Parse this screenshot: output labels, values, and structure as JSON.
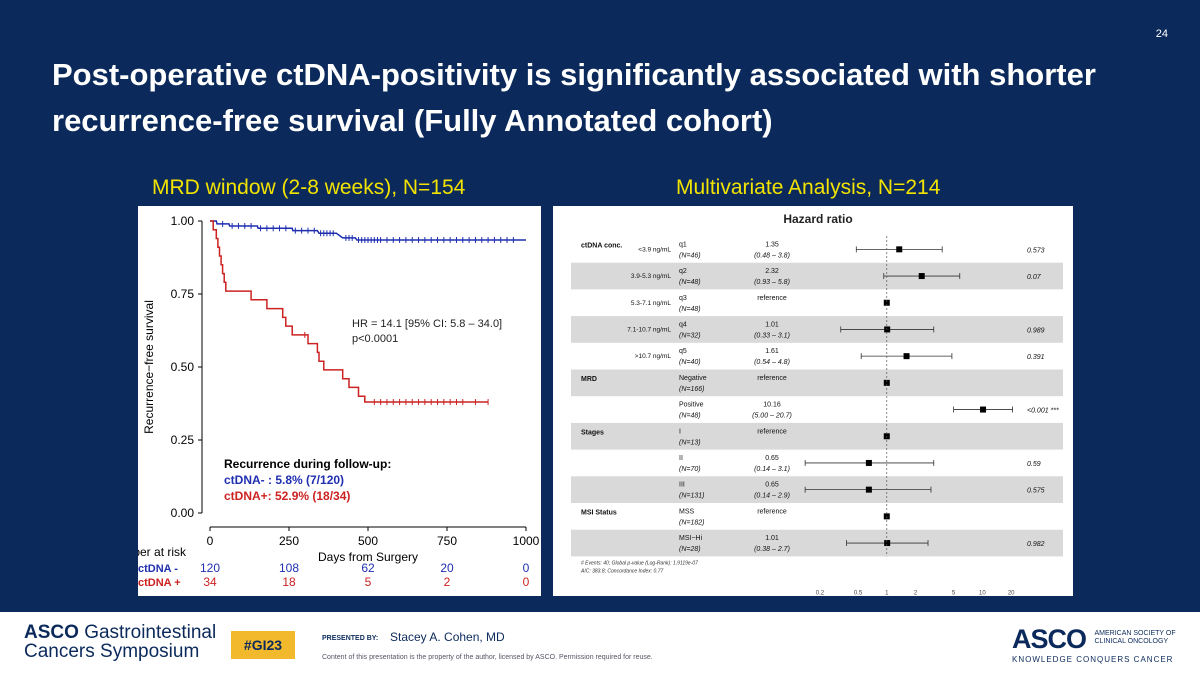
{
  "slide": {
    "page_number": "24",
    "title": "Post-operative ctDNA-positivity is significantly associated with shorter recurrence-free survival (Fully Annotated cohort)",
    "left_heading": "MRD window (2-8 weeks), N=154",
    "right_heading": "Multivariate Analysis, N=214"
  },
  "footer": {
    "logo_left_line1_bold": "ASCO",
    "logo_left_line1": "Gastrointestinal",
    "logo_left_line2": "Cancers Symposium",
    "hashtag": "#GI23",
    "presented_by_label": "PRESENTED BY:",
    "presenter": "Stacey A. Cohen, MD",
    "disclaimer": "Content of this presentation is the property of the author, licensed by ASCO. Permission required for reuse.",
    "logo_right_text": "ASCO",
    "logo_right_society": [
      "AMERICAN SOCIETY OF",
      "CLINICAL ONCOLOGY"
    ],
    "logo_right_tagline": "KNOWLEDGE CONQUERS CANCER"
  },
  "colors": {
    "background": "#0b2a5b",
    "heading": "#f2e300",
    "ctdna_neg": "#1f2fb0",
    "ctdna_pos": "#cc2222"
  },
  "chart_data": [
    {
      "type": "line",
      "ylabel": "Recurrence−free survival",
      "xlabel": "Days from Surgery",
      "x_ticks": [
        "0",
        "250",
        "500",
        "750",
        "1000"
      ],
      "y_ticks": [
        "0.00",
        "0.25",
        "0.50",
        "0.75",
        "1.00"
      ],
      "xlim": [
        0,
        1000
      ],
      "ylim": [
        0,
        1
      ],
      "grid": false,
      "annotation": {
        "hr_line": "HR = 14.1 [95% CI: 5.8 – 34.0]",
        "p_line": "p<0.0001"
      },
      "recurrence_box": {
        "title": "Recurrence during follow-up:",
        "neg": "ctDNA- : 5.8% (7/120)",
        "pos": "ctDNA+: 52.9% (18/34)"
      },
      "series": [
        {
          "name": "ctDNA -",
          "color": "#1f2fb0",
          "points": [
            [
              0,
              1.0
            ],
            [
              20,
              1.0
            ],
            [
              22,
              0.99
            ],
            [
              60,
              0.99
            ],
            [
              62,
              0.983
            ],
            [
              150,
              0.983
            ],
            [
              152,
              0.975
            ],
            [
              260,
              0.975
            ],
            [
              262,
              0.967
            ],
            [
              340,
              0.967
            ],
            [
              345,
              0.958
            ],
            [
              400,
              0.958
            ],
            [
              410,
              0.95
            ],
            [
              420,
              0.942
            ],
            [
              460,
              0.942
            ],
            [
              465,
              0.935
            ],
            [
              1000,
              0.935
            ]
          ],
          "censor_x": [
            40,
            70,
            90,
            110,
            130,
            160,
            180,
            200,
            220,
            240,
            270,
            290,
            310,
            330,
            350,
            360,
            370,
            380,
            390,
            430,
            440,
            450,
            470,
            480,
            490,
            500,
            510,
            520,
            530,
            540,
            560,
            580,
            600,
            620,
            640,
            660,
            680,
            700,
            720,
            740,
            760,
            780,
            800,
            820,
            840,
            860,
            880,
            900,
            920,
            940,
            960
          ]
        },
        {
          "name": "ctDNA +",
          "color": "#cc2222",
          "points": [
            [
              0,
              1.0
            ],
            [
              10,
              1.0
            ],
            [
              10,
              0.97
            ],
            [
              20,
              0.97
            ],
            [
              20,
              0.94
            ],
            [
              25,
              0.94
            ],
            [
              25,
              0.91
            ],
            [
              30,
              0.91
            ],
            [
              30,
              0.88
            ],
            [
              35,
              0.88
            ],
            [
              35,
              0.85
            ],
            [
              40,
              0.85
            ],
            [
              40,
              0.82
            ],
            [
              45,
              0.82
            ],
            [
              45,
              0.79
            ],
            [
              50,
              0.79
            ],
            [
              50,
              0.76
            ],
            [
              130,
              0.76
            ],
            [
              130,
              0.73
            ],
            [
              180,
              0.73
            ],
            [
              180,
              0.7
            ],
            [
              230,
              0.7
            ],
            [
              230,
              0.67
            ],
            [
              240,
              0.67
            ],
            [
              240,
              0.64
            ],
            [
              260,
              0.64
            ],
            [
              260,
              0.61
            ],
            [
              310,
              0.61
            ],
            [
              310,
              0.58
            ],
            [
              340,
              0.58
            ],
            [
              340,
              0.55
            ],
            [
              345,
              0.55
            ],
            [
              345,
              0.52
            ],
            [
              360,
              0.52
            ],
            [
              360,
              0.49
            ],
            [
              420,
              0.49
            ],
            [
              420,
              0.46
            ],
            [
              440,
              0.46
            ],
            [
              440,
              0.43
            ],
            [
              470,
              0.43
            ],
            [
              470,
              0.4
            ],
            [
              490,
              0.4
            ],
            [
              490,
              0.38
            ],
            [
              880,
              0.38
            ]
          ],
          "censor_x": [
            300,
            520,
            540,
            560,
            580,
            600,
            620,
            640,
            660,
            680,
            700,
            720,
            740,
            760,
            780,
            800,
            840,
            880
          ]
        }
      ],
      "risk_table": {
        "title": "Number at risk",
        "rows": [
          {
            "label": "ctDNA -",
            "color": "#1f2fb0",
            "values": [
              "120",
              "108",
              "62",
              "20",
              "0"
            ]
          },
          {
            "label": "ctDNA +",
            "color": "#cc2222",
            "values": [
              "34",
              "18",
              "5",
              "2",
              "0"
            ]
          }
        ]
      }
    },
    {
      "type": "scatter",
      "subtype": "forest",
      "title": "Hazard ratio",
      "x_scale": "log",
      "x_ticks": [
        "0.2",
        "0.5",
        "1",
        "2",
        "5",
        "10",
        "20"
      ],
      "xlim": [
        0.15,
        30
      ],
      "rows": [
        {
          "group": "ctDNA conc.",
          "sub": "<3.9 ng/mL",
          "level": "q1",
          "n": "(N=46)",
          "hr_text": "1.35",
          "ci_text": "(0.48 – 3.8)",
          "p": "0.573",
          "hr": 1.35,
          "lo": 0.48,
          "hi": 3.8,
          "shaded": false
        },
        {
          "group": "",
          "sub": "3.9-5.3 ng/mL",
          "level": "q2",
          "n": "(N=48)",
          "hr_text": "2.32",
          "ci_text": "(0.93 – 5.8)",
          "p": "0.07",
          "hr": 2.32,
          "lo": 0.93,
          "hi": 5.8,
          "shaded": true
        },
        {
          "group": "",
          "sub": "5.3-7.1 ng/mL",
          "level": "q3",
          "n": "(N=48)",
          "hr_text": "reference",
          "ci_text": "",
          "p": "",
          "hr": 1,
          "lo": null,
          "hi": null,
          "shaded": false
        },
        {
          "group": "",
          "sub": "7.1-10.7 ng/mL",
          "level": "q4",
          "n": "(N=32)",
          "hr_text": "1.01",
          "ci_text": "(0.33 – 3.1)",
          "p": "0.989",
          "hr": 1.01,
          "lo": 0.33,
          "hi": 3.1,
          "shaded": true
        },
        {
          "group": "",
          "sub": ">10.7 ng/mL",
          "level": "q5",
          "n": "(N=40)",
          "hr_text": "1.61",
          "ci_text": "(0.54 – 4.8)",
          "p": "0.391",
          "hr": 1.61,
          "lo": 0.54,
          "hi": 4.8,
          "shaded": false
        },
        {
          "group": "MRD",
          "sub": "",
          "level": "Negative",
          "n": "(N=166)",
          "hr_text": "reference",
          "ci_text": "",
          "p": "",
          "hr": 1,
          "lo": null,
          "hi": null,
          "shaded": true
        },
        {
          "group": "",
          "sub": "",
          "level": "Positive",
          "n": "(N=48)",
          "hr_text": "10.16",
          "ci_text": "(5.00 – 20.7)",
          "p": "<0.001 ***",
          "hr": 10.16,
          "lo": 5.0,
          "hi": 20.7,
          "shaded": false
        },
        {
          "group": "Stages",
          "sub": "",
          "level": "I",
          "n": "(N=13)",
          "hr_text": "reference",
          "ci_text": "",
          "p": "",
          "hr": 1,
          "lo": null,
          "hi": null,
          "shaded": true
        },
        {
          "group": "",
          "sub": "",
          "level": "II",
          "n": "(N=70)",
          "hr_text": "0.65",
          "ci_text": "(0.14 – 3.1)",
          "p": "0.59",
          "hr": 0.65,
          "lo": 0.14,
          "hi": 3.1,
          "shaded": false
        },
        {
          "group": "",
          "sub": "",
          "level": "III",
          "n": "(N=131)",
          "hr_text": "0.65",
          "ci_text": "(0.14 – 2.9)",
          "p": "0.575",
          "hr": 0.65,
          "lo": 0.14,
          "hi": 2.9,
          "shaded": true
        },
        {
          "group": "MSI Status",
          "sub": "",
          "level": "MSS",
          "n": "(N=182)",
          "hr_text": "reference",
          "ci_text": "",
          "p": "",
          "hr": 1,
          "lo": null,
          "hi": null,
          "shaded": false
        },
        {
          "group": "",
          "sub": "",
          "level": "MSI−Hi",
          "n": "(N=28)",
          "hr_text": "1.01",
          "ci_text": "(0.38 – 2.7)",
          "p": "0.982",
          "hr": 1.01,
          "lo": 0.38,
          "hi": 2.7,
          "shaded": true
        }
      ],
      "footnote_lines": [
        "# Events: 40; Global p-value (Log-Rank): 1.9119e-07",
        "AIC: 383.8; Concordance Index: 0.77"
      ]
    }
  ]
}
